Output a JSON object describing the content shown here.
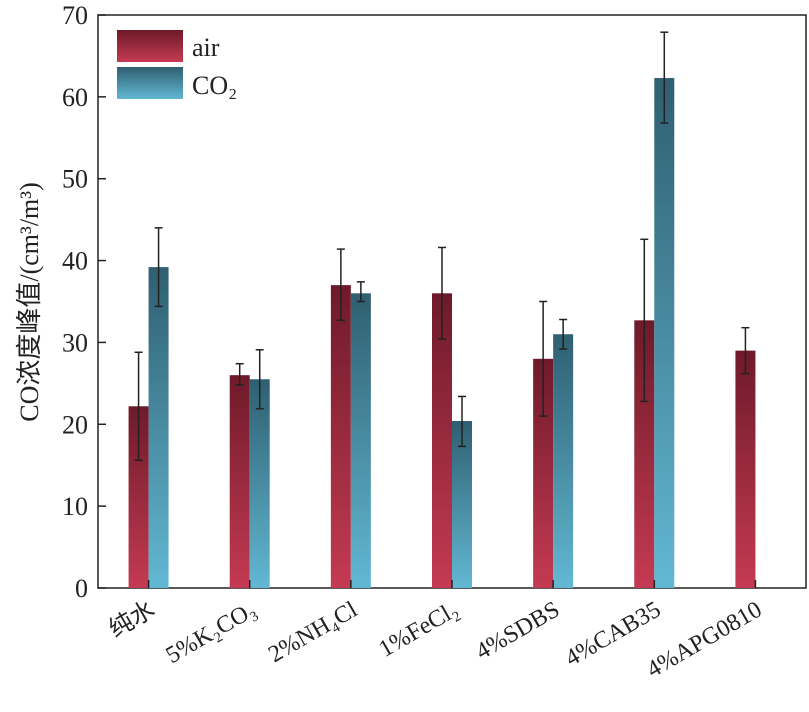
{
  "chart_data": {
    "type": "bar",
    "title": "",
    "xlabel": "",
    "ylabel": "CO浓度峰值/(cm³/m³)",
    "ylim": [
      0,
      70
    ],
    "yticks": [
      0,
      10,
      20,
      30,
      40,
      50,
      60,
      70
    ],
    "grid": false,
    "legend_position": "top-left",
    "categories": [
      "纯水",
      "5%K₂CO₃",
      "2%NH₄Cl",
      "1%FeCl₂",
      "4%SDBS",
      "4%CAB35",
      "4%APG0810"
    ],
    "series": [
      {
        "name": "air",
        "values": [
          22.2,
          26.0,
          37.0,
          36.0,
          28.0,
          32.7,
          29.0
        ],
        "err_low": [
          6.6,
          1.2,
          4.3,
          5.6,
          7.0,
          9.9,
          2.8
        ],
        "err_high": [
          6.6,
          1.4,
          4.4,
          5.6,
          7.0,
          9.9,
          2.8
        ],
        "color_top": "#6e1a2a",
        "color_bottom": "#c43a52"
      },
      {
        "name": "CO₂",
        "values": [
          39.2,
          25.5,
          36.0,
          20.4,
          31.0,
          62.3,
          null
        ],
        "err_low": [
          4.8,
          3.6,
          1.0,
          3.1,
          1.8,
          5.5,
          null
        ],
        "err_high": [
          4.8,
          3.6,
          1.4,
          3.0,
          1.8,
          5.6,
          null
        ],
        "color_top": "#2f5f70",
        "color_bottom": "#62b8d3"
      }
    ]
  }
}
